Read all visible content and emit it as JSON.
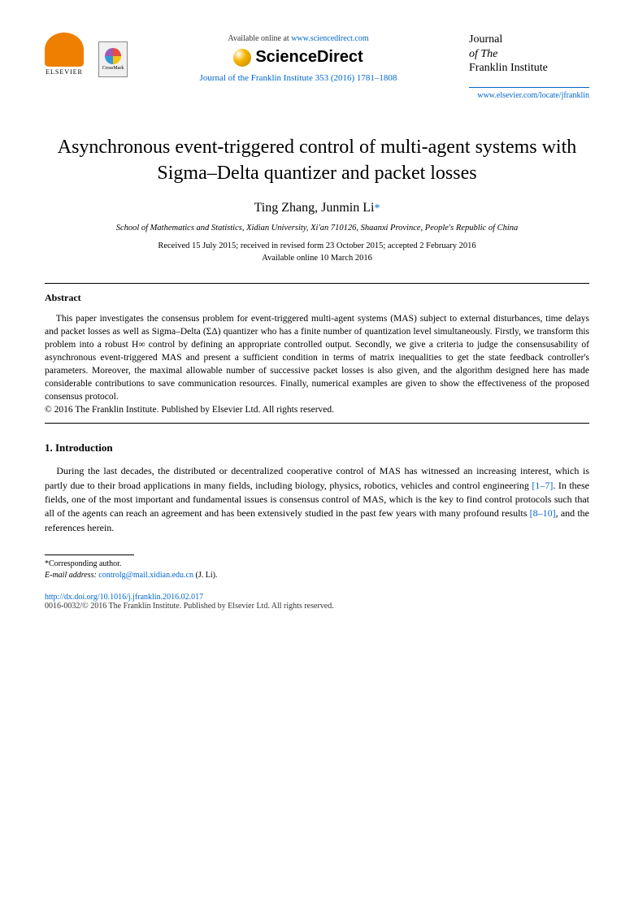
{
  "header": {
    "available_prefix": "Available online at ",
    "available_url": "www.sciencedirect.com",
    "sciencedirect_label": "ScienceDirect",
    "journal_ref": "Journal of the Franklin Institute 353 (2016) 1781–1808",
    "elsevier_label": "ELSEVIER",
    "crossmark_label": "CrossMark",
    "journal_name_line1": "Journal",
    "journal_name_line2": "of The",
    "journal_name_line3": "Franklin Institute",
    "journal_locate_url": "www.elsevier.com/locate/jfranklin"
  },
  "title": "Asynchronous event-triggered control of multi-agent systems with Sigma–Delta quantizer and packet losses",
  "authors": "Ting Zhang, Junmin Li",
  "corr_marker": "*",
  "affiliation": "School of Mathematics and Statistics, Xidian University, Xi'an 710126, Shaanxi Province, People's Republic of China",
  "dates": {
    "line1": "Received 15 July 2015; received in revised form 23 October 2015; accepted 2 February 2016",
    "line2": "Available online 10 March 2016"
  },
  "abstract": {
    "heading": "Abstract",
    "body": "This paper investigates the consensus problem for event-triggered multi-agent systems (MAS) subject to external disturbances, time delays and packet losses as well as Sigma–Delta (ΣΔ) quantizer who has a finite number of quantization level simultaneously. Firstly, we transform this problem into a robust H∞ control by defining an appropriate controlled output. Secondly, we give a criteria to judge the consensusability of asynchronous event-triggered MAS and present a sufficient condition in terms of matrix inequalities to get the state feedback controller's parameters. Moreover, the maximal allowable number of successive packet losses is also given, and the algorithm designed here has made considerable contributions to save communication resources. Finally, numerical examples are given to show the effectiveness of the proposed consensus protocol.",
    "copyright": "© 2016 The Franklin Institute. Published by Elsevier Ltd. All rights reserved."
  },
  "section1": {
    "heading": "1. Introduction",
    "para1_a": "During the last decades, the distributed or decentralized cooperative control of MAS has witnessed an increasing interest, which is partly due to their broad applications in many fields, including biology, physics, robotics, vehicles and control engineering ",
    "cite1": "[1–7]",
    "para1_b": ". In these fields, one of the most important and fundamental issues is consensus control of MAS, which is the key to find control protocols such that all of the agents can reach an agreement and has been extensively studied in the past few years with many profound results ",
    "cite2": "[8–10]",
    "para1_c": ", and the references herein."
  },
  "footnote": {
    "corr_label": "*Corresponding author.",
    "email_label": "E-mail address: ",
    "email": "controlg@mail.xidian.edu.cn",
    "email_suffix": " (J. Li)."
  },
  "footer": {
    "doi": "http://dx.doi.org/10.1016/j.jfranklin.2016.02.017",
    "issn_line": "0016-0032/© 2016 The Franklin Institute. Published by Elsevier Ltd. All rights reserved."
  },
  "colors": {
    "link": "#0066cc",
    "text": "#000000",
    "elsevier_orange": "#ee7f00"
  }
}
